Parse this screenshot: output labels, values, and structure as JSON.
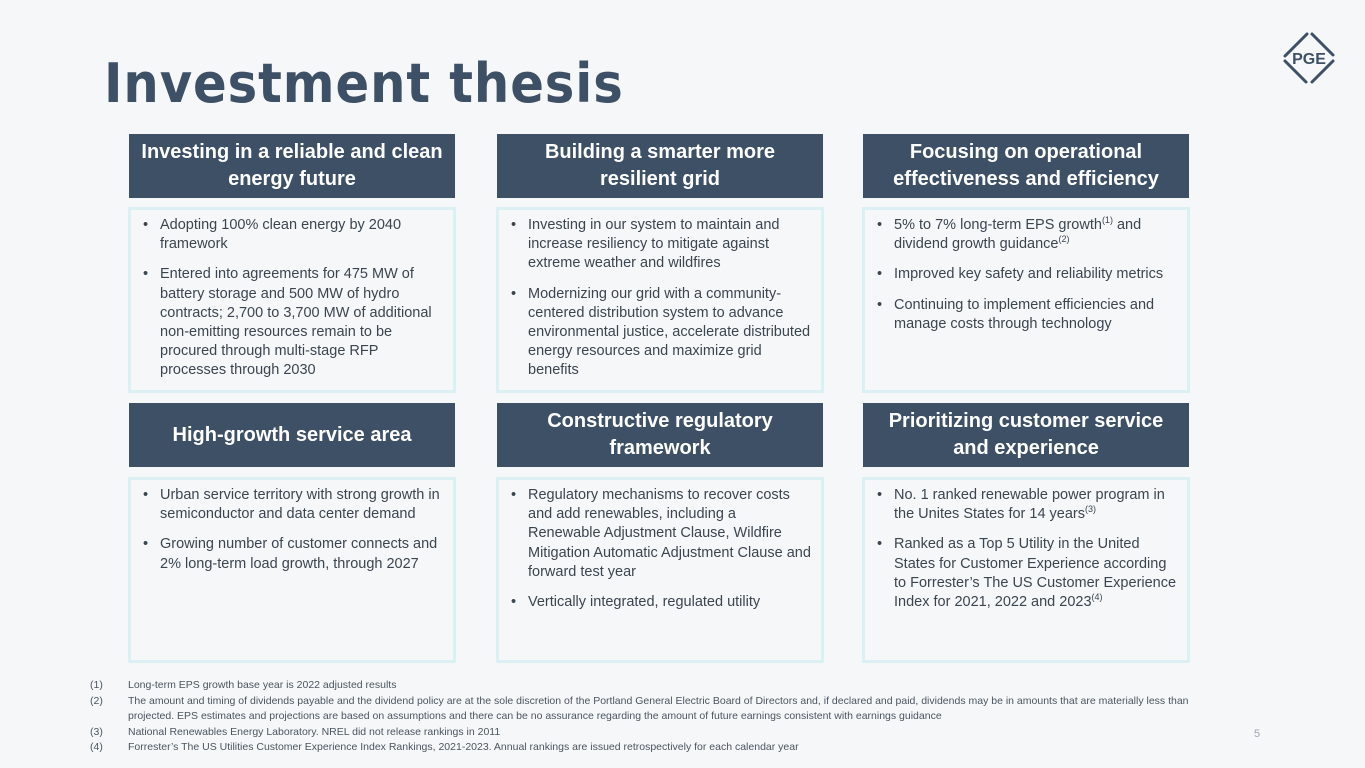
{
  "title": "Investment thesis",
  "logo_text": "PGE",
  "page_number": "5",
  "colors": {
    "header": "#3d5066",
    "box_border": "#dcf0f4",
    "background": "#f6f7f8"
  },
  "cards": [
    {
      "header": "Investing in a reliable and clean energy future",
      "bullets": [
        [
          {
            "t": "Adopting 100% clean energy by 2040 framework"
          }
        ],
        [
          {
            "t": "Entered into agreements for 475 MW of battery storage and 500 MW of hydro contracts; 2,700 to 3,700 MW of additional non-emitting resources remain to be procured through multi-stage RFP processes through 2030"
          }
        ]
      ]
    },
    {
      "header": "Building a smarter more resilient grid",
      "bullets": [
        [
          {
            "t": "Investing in our system to maintain and increase resiliency to mitigate against extreme weather and wildfires"
          }
        ],
        [
          {
            "t": "Modernizing our grid with a community-centered distribution system to advance environmental justice, accelerate distributed energy resources and maximize grid benefits"
          }
        ]
      ]
    },
    {
      "header": "Focusing on operational effectiveness and efficiency",
      "bullets": [
        [
          {
            "t": "5% to 7% long-term EPS growth"
          },
          {
            "s": "(1)"
          },
          {
            "t": " and dividend growth guidance"
          },
          {
            "s": "(2)"
          }
        ],
        [
          {
            "t": "Improved key safety and reliability metrics"
          }
        ],
        [
          {
            "t": "Continuing to implement efficiencies and manage costs through technology"
          }
        ]
      ]
    },
    {
      "header": "High-growth service area",
      "bullets": [
        [
          {
            "t": "Urban service territory with strong growth in semiconductor and data center demand"
          }
        ],
        [
          {
            "t": "Growing number of customer connects and 2% long-term load growth, through 2027"
          }
        ]
      ]
    },
    {
      "header": "Constructive regulatory framework",
      "bullets": [
        [
          {
            "t": "Regulatory mechanisms to recover costs and add renewables, including a Renewable Adjustment Clause, Wildfire Mitigation Automatic Adjustment Clause and forward test year"
          }
        ],
        [
          {
            "t": "Vertically integrated, regulated utility"
          }
        ]
      ]
    },
    {
      "header": "Prioritizing customer service and experience",
      "bullets": [
        [
          {
            "t": "No. 1 ranked renewable power program in the Unites States for 14 years"
          },
          {
            "s": "(3)"
          }
        ],
        [
          {
            "t": "Ranked as a Top 5 Utility in the United States for Customer Experience according to Forrester’s The US Customer Experience Index for 2021, 2022 and 2023"
          },
          {
            "s": "(4)"
          }
        ]
      ]
    }
  ],
  "footnotes": [
    {
      "n": "(1)",
      "t": "Long-term EPS growth base year is 2022 adjusted results"
    },
    {
      "n": "(2)",
      "t": "The amount and timing of dividends payable and the dividend policy are at the sole discretion of the Portland General Electric Board of Directors and, if declared and paid, dividends may be in amounts that are materially less than projected. EPS estimates and projections are based on assumptions and there can be no assurance regarding the amount of future earnings consistent with earnings guidance"
    },
    {
      "n": "(3)",
      "t": "National Renewables Energy Laboratory. NREL did not release rankings in 2011"
    },
    {
      "n": "(4)",
      "t": "Forrester’s The US Utilities Customer Experience Index Rankings, 2021-2023. Annual rankings are issued retrospectively for each calendar year"
    }
  ]
}
